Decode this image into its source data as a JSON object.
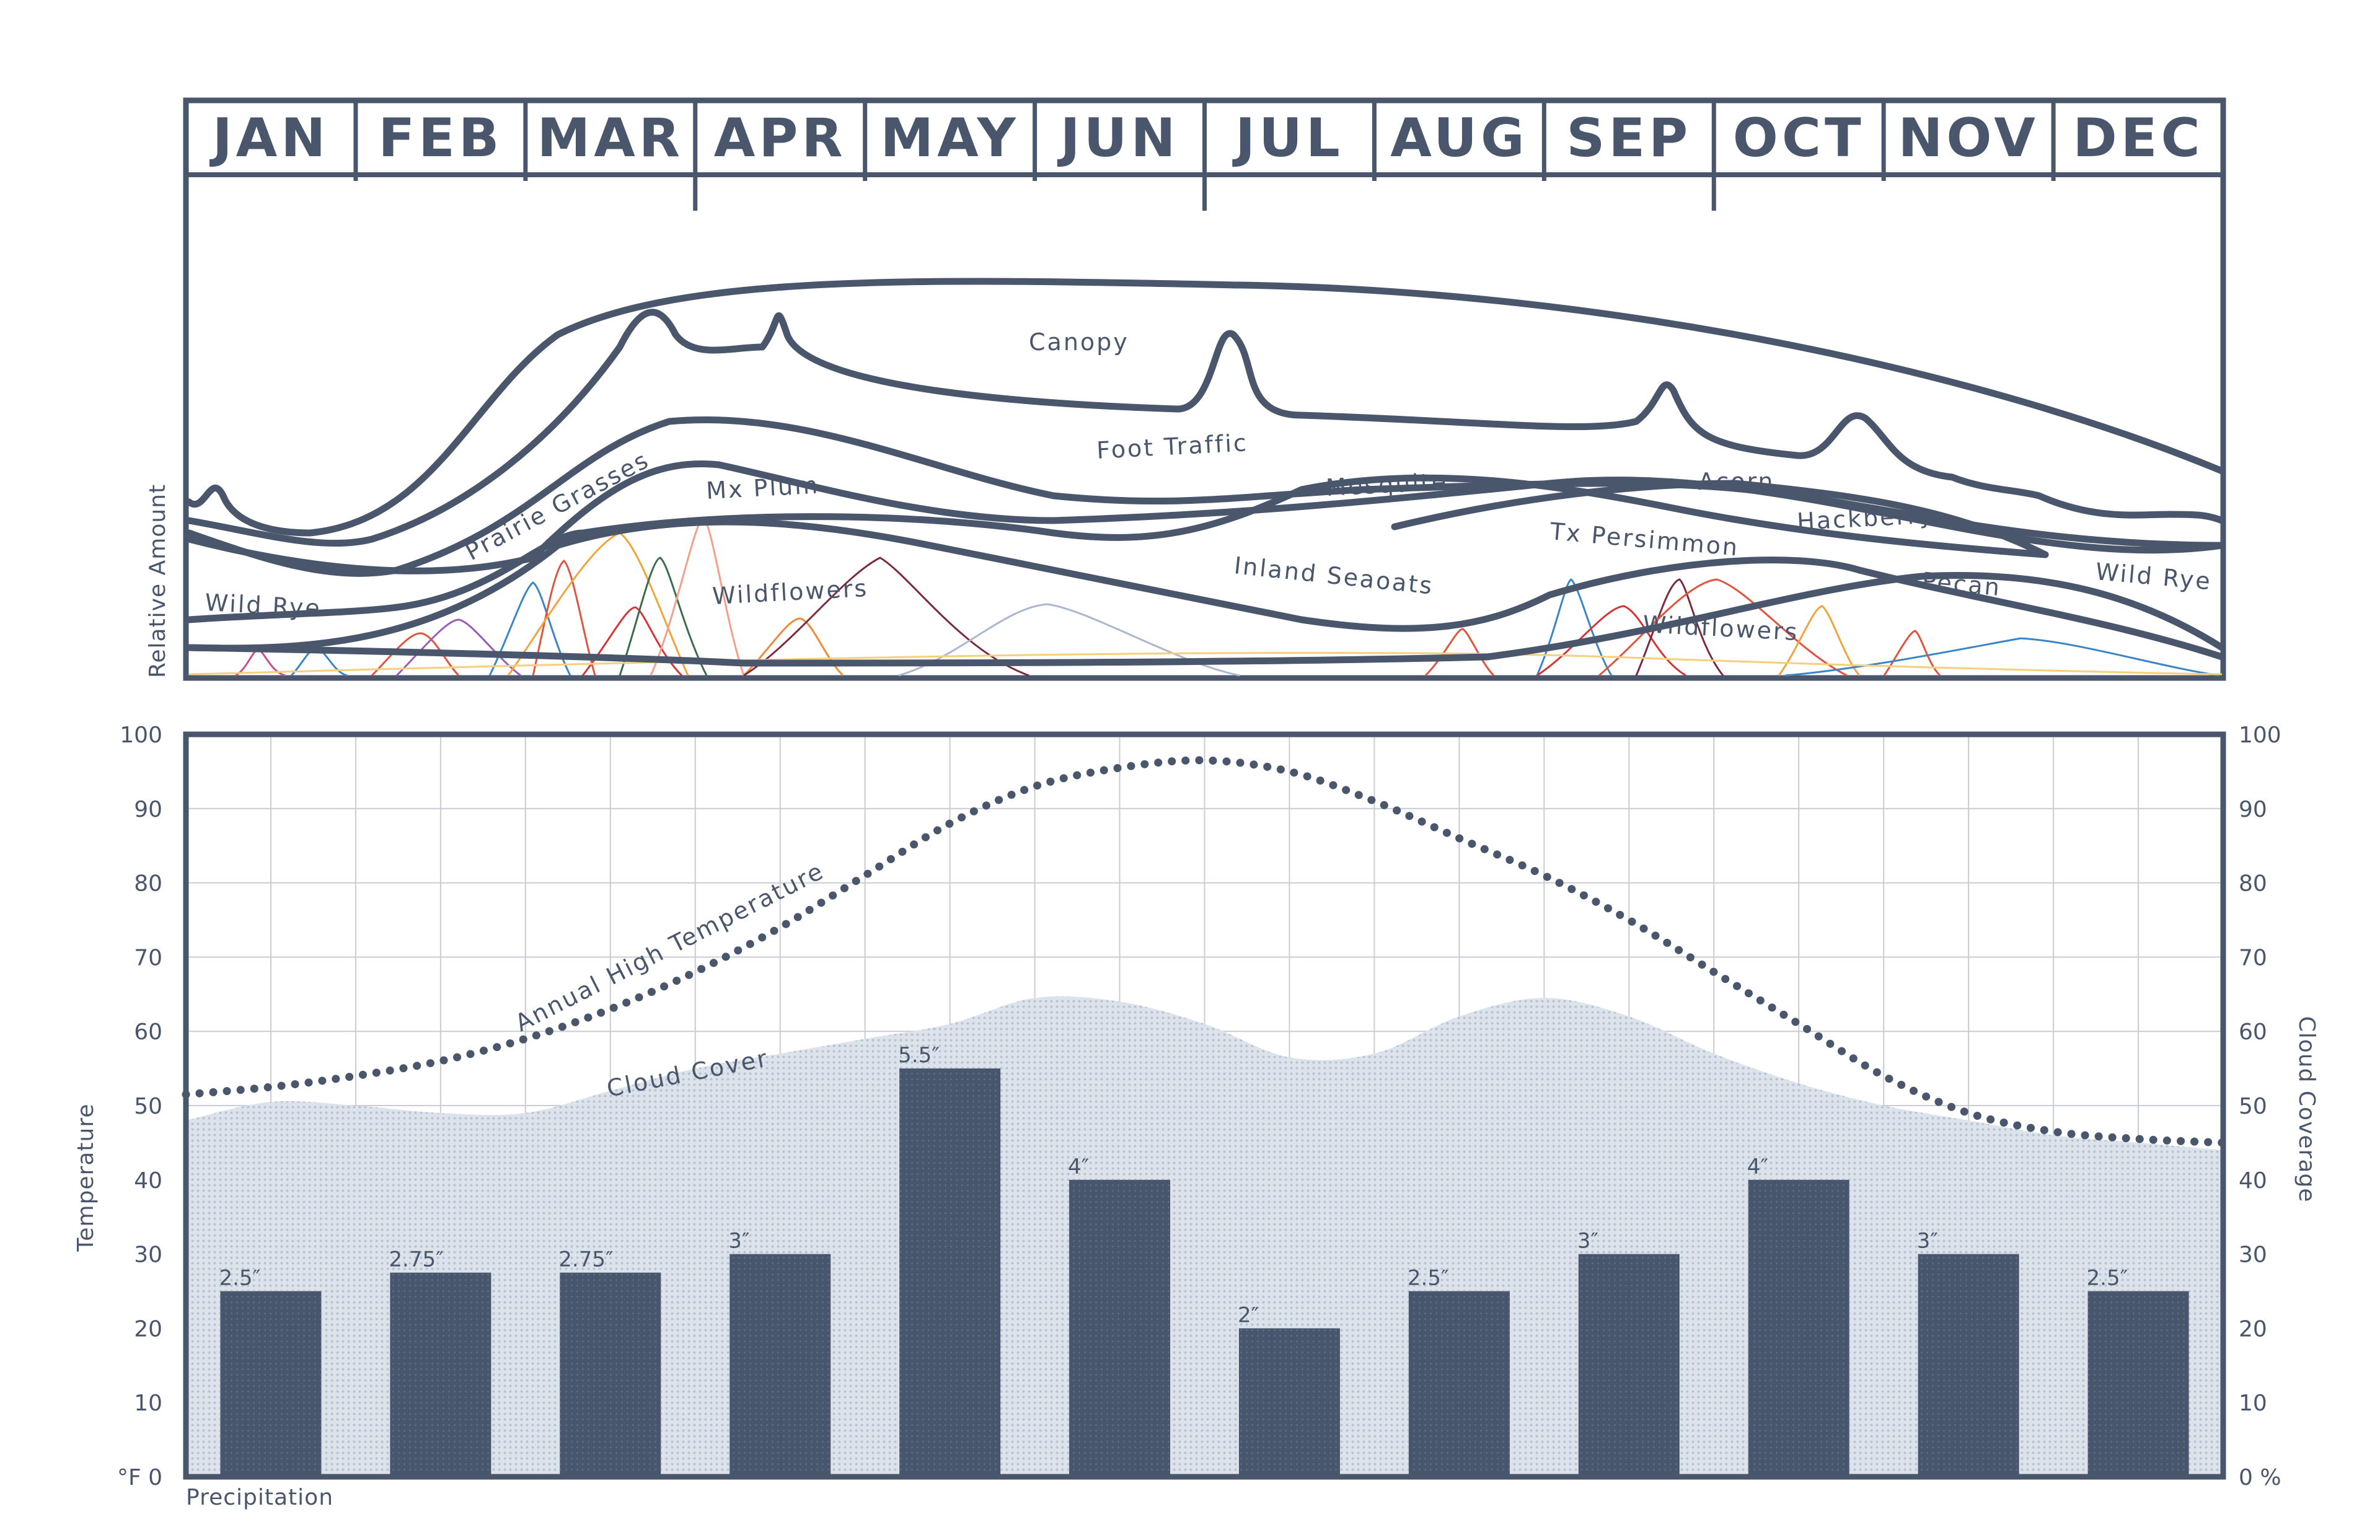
{
  "colors": {
    "ink": "#4a566b",
    "bar": "#47566d",
    "cloud": "#c8d1de",
    "grid": "#c9ccd3"
  },
  "chart_data": [
    {
      "type": "area",
      "months": [
        "JAN",
        "FEB",
        "MAR",
        "APR",
        "MAY",
        "JUN",
        "JUL",
        "AUG",
        "SEP",
        "OCT",
        "NOV",
        "DEC"
      ],
      "ylabel": "Relative Amount",
      "layers": [
        {
          "name": "Canopy"
        },
        {
          "name": "Foot Traffic"
        },
        {
          "name": "Prairie Grasses"
        },
        {
          "name": "Mx Plum"
        },
        {
          "name": "Mesquite"
        },
        {
          "name": "Acorn"
        },
        {
          "name": "Tx Persimmon"
        },
        {
          "name": "Hackberry"
        },
        {
          "name": "Inland Seaoats"
        },
        {
          "name": "Wildflowers",
          "occurrence": "spring"
        },
        {
          "name": "Wildflowers",
          "occurrence": "fall"
        },
        {
          "name": "Wild Rye",
          "occurrence": "winter-early"
        },
        {
          "name": "Wild Rye",
          "occurrence": "winter-late"
        },
        {
          "name": "Pecan"
        }
      ]
    },
    {
      "type": "bar",
      "categories": [
        "JAN",
        "FEB",
        "MAR",
        "APR",
        "MAY",
        "JUN",
        "JUL",
        "AUG",
        "SEP",
        "OCT",
        "NOV",
        "DEC"
      ],
      "xlabel": "Precipitation",
      "ylabel": "Temperature",
      "ylabel_right": "Cloud Coverage",
      "ylim": [
        0,
        100
      ],
      "yticks": [
        "°F 0",
        "10",
        "20",
        "30",
        "40",
        "50",
        "60",
        "70",
        "80",
        "90",
        "100"
      ],
      "yticks_right": [
        "0 %",
        "10",
        "20",
        "30",
        "40",
        "50",
        "60",
        "70",
        "80",
        "90",
        "100"
      ],
      "series": [
        {
          "name": "Precipitation",
          "values": [
            2.5,
            2.75,
            2.75,
            3,
            5.5,
            4,
            2,
            2.5,
            3,
            4,
            3,
            2.5
          ],
          "labels": [
            "2.5″",
            "2.75″",
            "2.75″",
            "3″",
            "5.5″",
            "4″",
            "2″",
            "2.5″",
            "3″",
            "4″",
            "3″",
            "2.5″"
          ]
        },
        {
          "name": "Annual High Temperature",
          "type": "line",
          "style": "dotted",
          "x": [
            0,
            0.5,
            1,
            1.5,
            2,
            2.5,
            3,
            3.5,
            4,
            4.5,
            5,
            5.5,
            6,
            6.5,
            7,
            7.5,
            8,
            8.5,
            9,
            9.5,
            10,
            10.5,
            11,
            11.5,
            12
          ],
          "values": [
            51.5,
            52.5,
            54,
            56,
            59,
            63,
            68,
            74,
            81,
            88,
            93,
            95.5,
            96.5,
            95,
            91,
            86,
            81,
            75,
            68,
            61,
            54,
            49,
            46.5,
            45.5,
            45
          ]
        },
        {
          "name": "Cloud Cover",
          "type": "area",
          "x": [
            0,
            0.5,
            1,
            1.5,
            2,
            2.5,
            3,
            3.5,
            4,
            4.5,
            5,
            5.5,
            6,
            6.5,
            7,
            7.5,
            8,
            8.5,
            9,
            9.5,
            10,
            10.5,
            11,
            11.5,
            12
          ],
          "values": [
            48,
            50.5,
            50,
            49,
            49,
            52,
            55,
            57,
            59,
            61,
            64.5,
            64,
            61,
            56.5,
            57,
            62,
            64.5,
            62,
            57,
            53,
            50,
            48,
            46,
            45,
            44
          ]
        }
      ]
    }
  ]
}
